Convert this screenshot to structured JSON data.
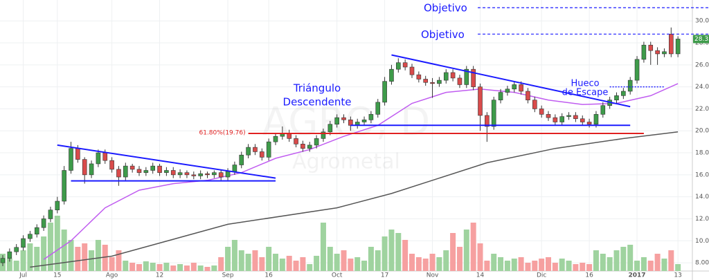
{
  "chart_data": {
    "type": "candlestick",
    "watermark": "AGRO, D",
    "watermark_sub": "Agrometal",
    "categories": [
      null,
      null,
      null,
      "Jul",
      null,
      null,
      null,
      null,
      "15",
      null,
      null,
      null,
      null,
      null,
      null,
      null,
      "Ago",
      null,
      null,
      null,
      null,
      null,
      null,
      "12",
      null,
      null,
      null,
      null,
      null,
      null,
      null,
      null,
      null,
      "Sep",
      null,
      null,
      null,
      null,
      null,
      "16",
      null,
      null,
      null,
      null,
      null,
      null,
      null,
      null,
      null,
      "Oct",
      null,
      null,
      null,
      null,
      null,
      null,
      "17",
      null,
      null,
      null,
      null,
      null,
      null,
      "Nov",
      null,
      null,
      null,
      null,
      null,
      null,
      "14",
      null,
      null,
      null,
      null,
      null,
      null,
      null,
      null,
      "Dic",
      null,
      null,
      null,
      null,
      null,
      null,
      "16",
      null,
      null,
      null,
      null,
      null,
      null,
      "2017",
      null,
      null,
      null,
      null,
      null,
      "13"
    ],
    "open": [
      8.0,
      8.4,
      9.0,
      9.4,
      10.2,
      10.6,
      11.2,
      12.0,
      12.8,
      13.6,
      16.4,
      18.4,
      17.4,
      16.0,
      17.0,
      18.0,
      17.3,
      16.5,
      15.8,
      16.8,
      16.5,
      16.2,
      16.4,
      16.8,
      16.2,
      16.4,
      16.0,
      16.2,
      16.0,
      15.9,
      16.1,
      16.0,
      16.2,
      15.8,
      16.3,
      16.9,
      17.8,
      18.5,
      18.1,
      17.6,
      19.0,
      19.5,
      19.8,
      19.3,
      18.8,
      18.4,
      18.7,
      19.3,
      19.9,
      20.6,
      21.2,
      21.0,
      20.5,
      20.8,
      21.0,
      21.5,
      22.6,
      24.5,
      25.6,
      26.2,
      25.8,
      25.1,
      24.7,
      24.4,
      24.3,
      24.6,
      25.3,
      24.8,
      24.2,
      25.6,
      24.0,
      21.4,
      20.4,
      22.8,
      23.5,
      23.8,
      24.2,
      23.6,
      22.8,
      22.0,
      21.5,
      21.2,
      20.8,
      21.3,
      21.4,
      21.1,
      20.8,
      20.6,
      21.5,
      22.3,
      22.8,
      23.2,
      23.6,
      24.6,
      26.5,
      27.8,
      27.3,
      27.0,
      28.8,
      27.0
    ],
    "high": [
      8.7,
      9.3,
      9.7,
      10.5,
      10.9,
      11.5,
      12.3,
      13.1,
      14.0,
      16.8,
      19.0,
      18.7,
      17.6,
      17.3,
      18.3,
      18.3,
      17.6,
      16.8,
      17.1,
      17.0,
      16.8,
      16.7,
      17.1,
      17.0,
      16.7,
      16.7,
      16.5,
      16.4,
      16.3,
      16.4,
      16.3,
      16.4,
      16.4,
      16.6,
      17.2,
      18.1,
      18.8,
      18.8,
      18.4,
      19.3,
      19.8,
      20.4,
      20.1,
      19.6,
      19.1,
      19.0,
      19.6,
      20.2,
      20.9,
      21.5,
      21.5,
      21.3,
      21.1,
      21.3,
      21.8,
      22.9,
      24.9,
      26.0,
      26.6,
      26.5,
      26.1,
      25.4,
      25.0,
      24.8,
      24.9,
      25.6,
      25.6,
      25.1,
      25.9,
      25.9,
      24.3,
      21.7,
      23.1,
      23.8,
      24.1,
      24.5,
      24.5,
      23.9,
      23.1,
      22.3,
      21.8,
      21.5,
      21.6,
      21.7,
      21.7,
      21.4,
      21.1,
      21.8,
      22.6,
      23.1,
      23.5,
      23.9,
      24.9,
      26.8,
      28.1,
      28.1,
      27.6,
      27.5,
      29.4,
      28.6
    ],
    "low": [
      7.7,
      8.1,
      8.7,
      9.1,
      9.9,
      10.3,
      10.9,
      11.7,
      12.5,
      13.3,
      16.1,
      17.1,
      15.2,
      15.7,
      16.7,
      17.0,
      16.2,
      15.0,
      15.5,
      16.2,
      15.9,
      15.9,
      16.1,
      15.9,
      15.9,
      15.7,
      15.7,
      15.7,
      15.6,
      15.6,
      15.7,
      15.7,
      15.5,
      15.5,
      16.0,
      16.6,
      17.5,
      17.8,
      17.3,
      17.3,
      18.7,
      19.2,
      19.0,
      18.5,
      18.1,
      18.1,
      18.4,
      19.0,
      19.6,
      20.3,
      20.7,
      20.0,
      20.2,
      20.5,
      20.7,
      21.2,
      22.3,
      24.2,
      25.3,
      25.5,
      24.8,
      24.4,
      24.1,
      23.0,
      24.0,
      24.3,
      24.5,
      23.9,
      23.9,
      23.7,
      20.0,
      19.0,
      20.1,
      22.5,
      23.2,
      23.5,
      23.3,
      22.5,
      21.7,
      21.2,
      20.9,
      20.5,
      20.5,
      21.0,
      20.8,
      20.5,
      20.3,
      20.3,
      21.2,
      22.0,
      22.5,
      22.9,
      23.3,
      24.3,
      26.2,
      26.0,
      26.0,
      26.7,
      26.7,
      26.7
    ],
    "close": [
      8.4,
      9.0,
      9.4,
      10.2,
      10.6,
      11.2,
      12.0,
      12.8,
      13.6,
      16.4,
      18.4,
      17.4,
      16.0,
      17.0,
      18.0,
      17.3,
      16.5,
      15.8,
      16.8,
      16.5,
      16.2,
      16.4,
      16.8,
      16.2,
      16.4,
      16.0,
      16.2,
      16.0,
      15.9,
      16.1,
      16.0,
      16.2,
      15.8,
      16.3,
      16.9,
      17.8,
      18.5,
      18.1,
      17.6,
      19.0,
      19.5,
      19.8,
      19.3,
      18.8,
      18.4,
      18.7,
      19.3,
      19.9,
      20.6,
      21.2,
      21.0,
      20.5,
      20.8,
      21.0,
      21.5,
      22.6,
      24.5,
      25.6,
      26.2,
      25.8,
      25.1,
      24.7,
      24.4,
      24.3,
      24.6,
      25.3,
      24.8,
      24.2,
      25.6,
      24.0,
      21.4,
      20.4,
      22.8,
      23.5,
      23.8,
      24.2,
      23.6,
      22.8,
      22.0,
      21.5,
      21.2,
      20.8,
      21.3,
      21.4,
      21.1,
      20.8,
      20.6,
      21.5,
      22.3,
      22.8,
      23.2,
      23.6,
      24.6,
      26.5,
      27.8,
      27.3,
      27.0,
      27.2,
      27.0,
      28.35
    ],
    "volume": [
      25,
      18,
      15,
      30,
      40,
      35,
      50,
      70,
      80,
      60,
      45,
      35,
      40,
      30,
      45,
      38,
      20,
      30,
      15,
      12,
      10,
      14,
      12,
      10,
      12,
      8,
      10,
      8,
      12,
      8,
      6,
      8,
      20,
      35,
      45,
      30,
      25,
      30,
      20,
      35,
      25,
      18,
      22,
      15,
      20,
      10,
      22,
      70,
      35,
      25,
      30,
      18,
      20,
      15,
      35,
      30,
      50,
      60,
      55,
      45,
      25,
      20,
      18,
      25,
      20,
      30,
      55,
      35,
      60,
      70,
      40,
      15,
      25,
      20,
      15,
      18,
      20,
      12,
      15,
      18,
      20,
      12,
      18,
      15,
      10,
      12,
      10,
      30,
      25,
      20,
      30,
      35,
      38,
      15,
      20,
      15,
      25,
      18,
      30,
      10
    ],
    "vlim": [
      0,
      100
    ],
    "up_color": "#3e9b4a",
    "down_color": "#d94b4b",
    "vol_up_color": "#9fd39f",
    "vol_down_color": "#f6a0a0",
    "ma_series": [
      {
        "color": "#c05cf0",
        "x": [
          6,
          10,
          15,
          20,
          25,
          30,
          35,
          40,
          45,
          50,
          55,
          60,
          65,
          70,
          75,
          80,
          85,
          90,
          95,
          99
        ],
        "values": [
          8.3,
          10.0,
          13.0,
          14.6,
          15.2,
          15.5,
          16.2,
          17.5,
          18.3,
          19.5,
          20.5,
          22.5,
          23.5,
          23.8,
          23.5,
          22.8,
          22.4,
          22.5,
          23.2,
          24.3
        ]
      },
      {
        "color": "#555555",
        "x": [
          4,
          16,
          33,
          49,
          57,
          71,
          81,
          91,
          99
        ],
        "values": [
          7.6,
          8.6,
          11.5,
          13.0,
          14.3,
          17.1,
          18.4,
          19.3,
          19.9
        ]
      }
    ],
    "trendlines": [
      {
        "color": "#1a1aff",
        "x": [
          8,
          40
        ],
        "y": [
          18.7,
          15.7
        ]
      },
      {
        "color": "#1a1aff",
        "x": [
          10,
          40
        ],
        "y": [
          15.45,
          15.45
        ]
      },
      {
        "color": "#1a1aff",
        "x": [
          57,
          92
        ],
        "y": [
          26.9,
          22.2
        ]
      },
      {
        "color": "#1a1aff",
        "x": [
          51,
          92
        ],
        "y": [
          20.5,
          20.5
        ]
      },
      {
        "color": "#e02020",
        "x": [
          36,
          94
        ],
        "y": [
          19.76,
          19.76
        ]
      }
    ],
    "fib_label": "61.80%(19.76)",
    "targets": [
      {
        "label": "Objetivo",
        "value": 31.2
      },
      {
        "label": "Objetivo",
        "value": 28.8
      }
    ],
    "gap": {
      "label": [
        "Hueco",
        "de Escape"
      ],
      "x": [
        89,
        97
      ],
      "value": 24.0
    },
    "pattern_label": [
      "Triángulo",
      "Descendente"
    ],
    "ylim": [
      7.25,
      31.9
    ],
    "yticks": [
      {
        "value": 8,
        "label": "8.00"
      },
      {
        "value": 10,
        "label": "10.00"
      },
      {
        "value": 12,
        "label": "12.00"
      },
      {
        "value": 14,
        "label": "14.00"
      },
      {
        "value": 16,
        "label": "16.00"
      },
      {
        "value": 18,
        "label": "18.00"
      },
      {
        "value": 20,
        "label": "20.00"
      },
      {
        "value": 22,
        "label": "22.00"
      },
      {
        "value": 24,
        "label": "24.00"
      },
      {
        "value": 26,
        "label": "26.00"
      },
      {
        "value": 28,
        "label": "28.00"
      },
      {
        "value": 30,
        "label": "30.00"
      }
    ],
    "grid": true
  }
}
